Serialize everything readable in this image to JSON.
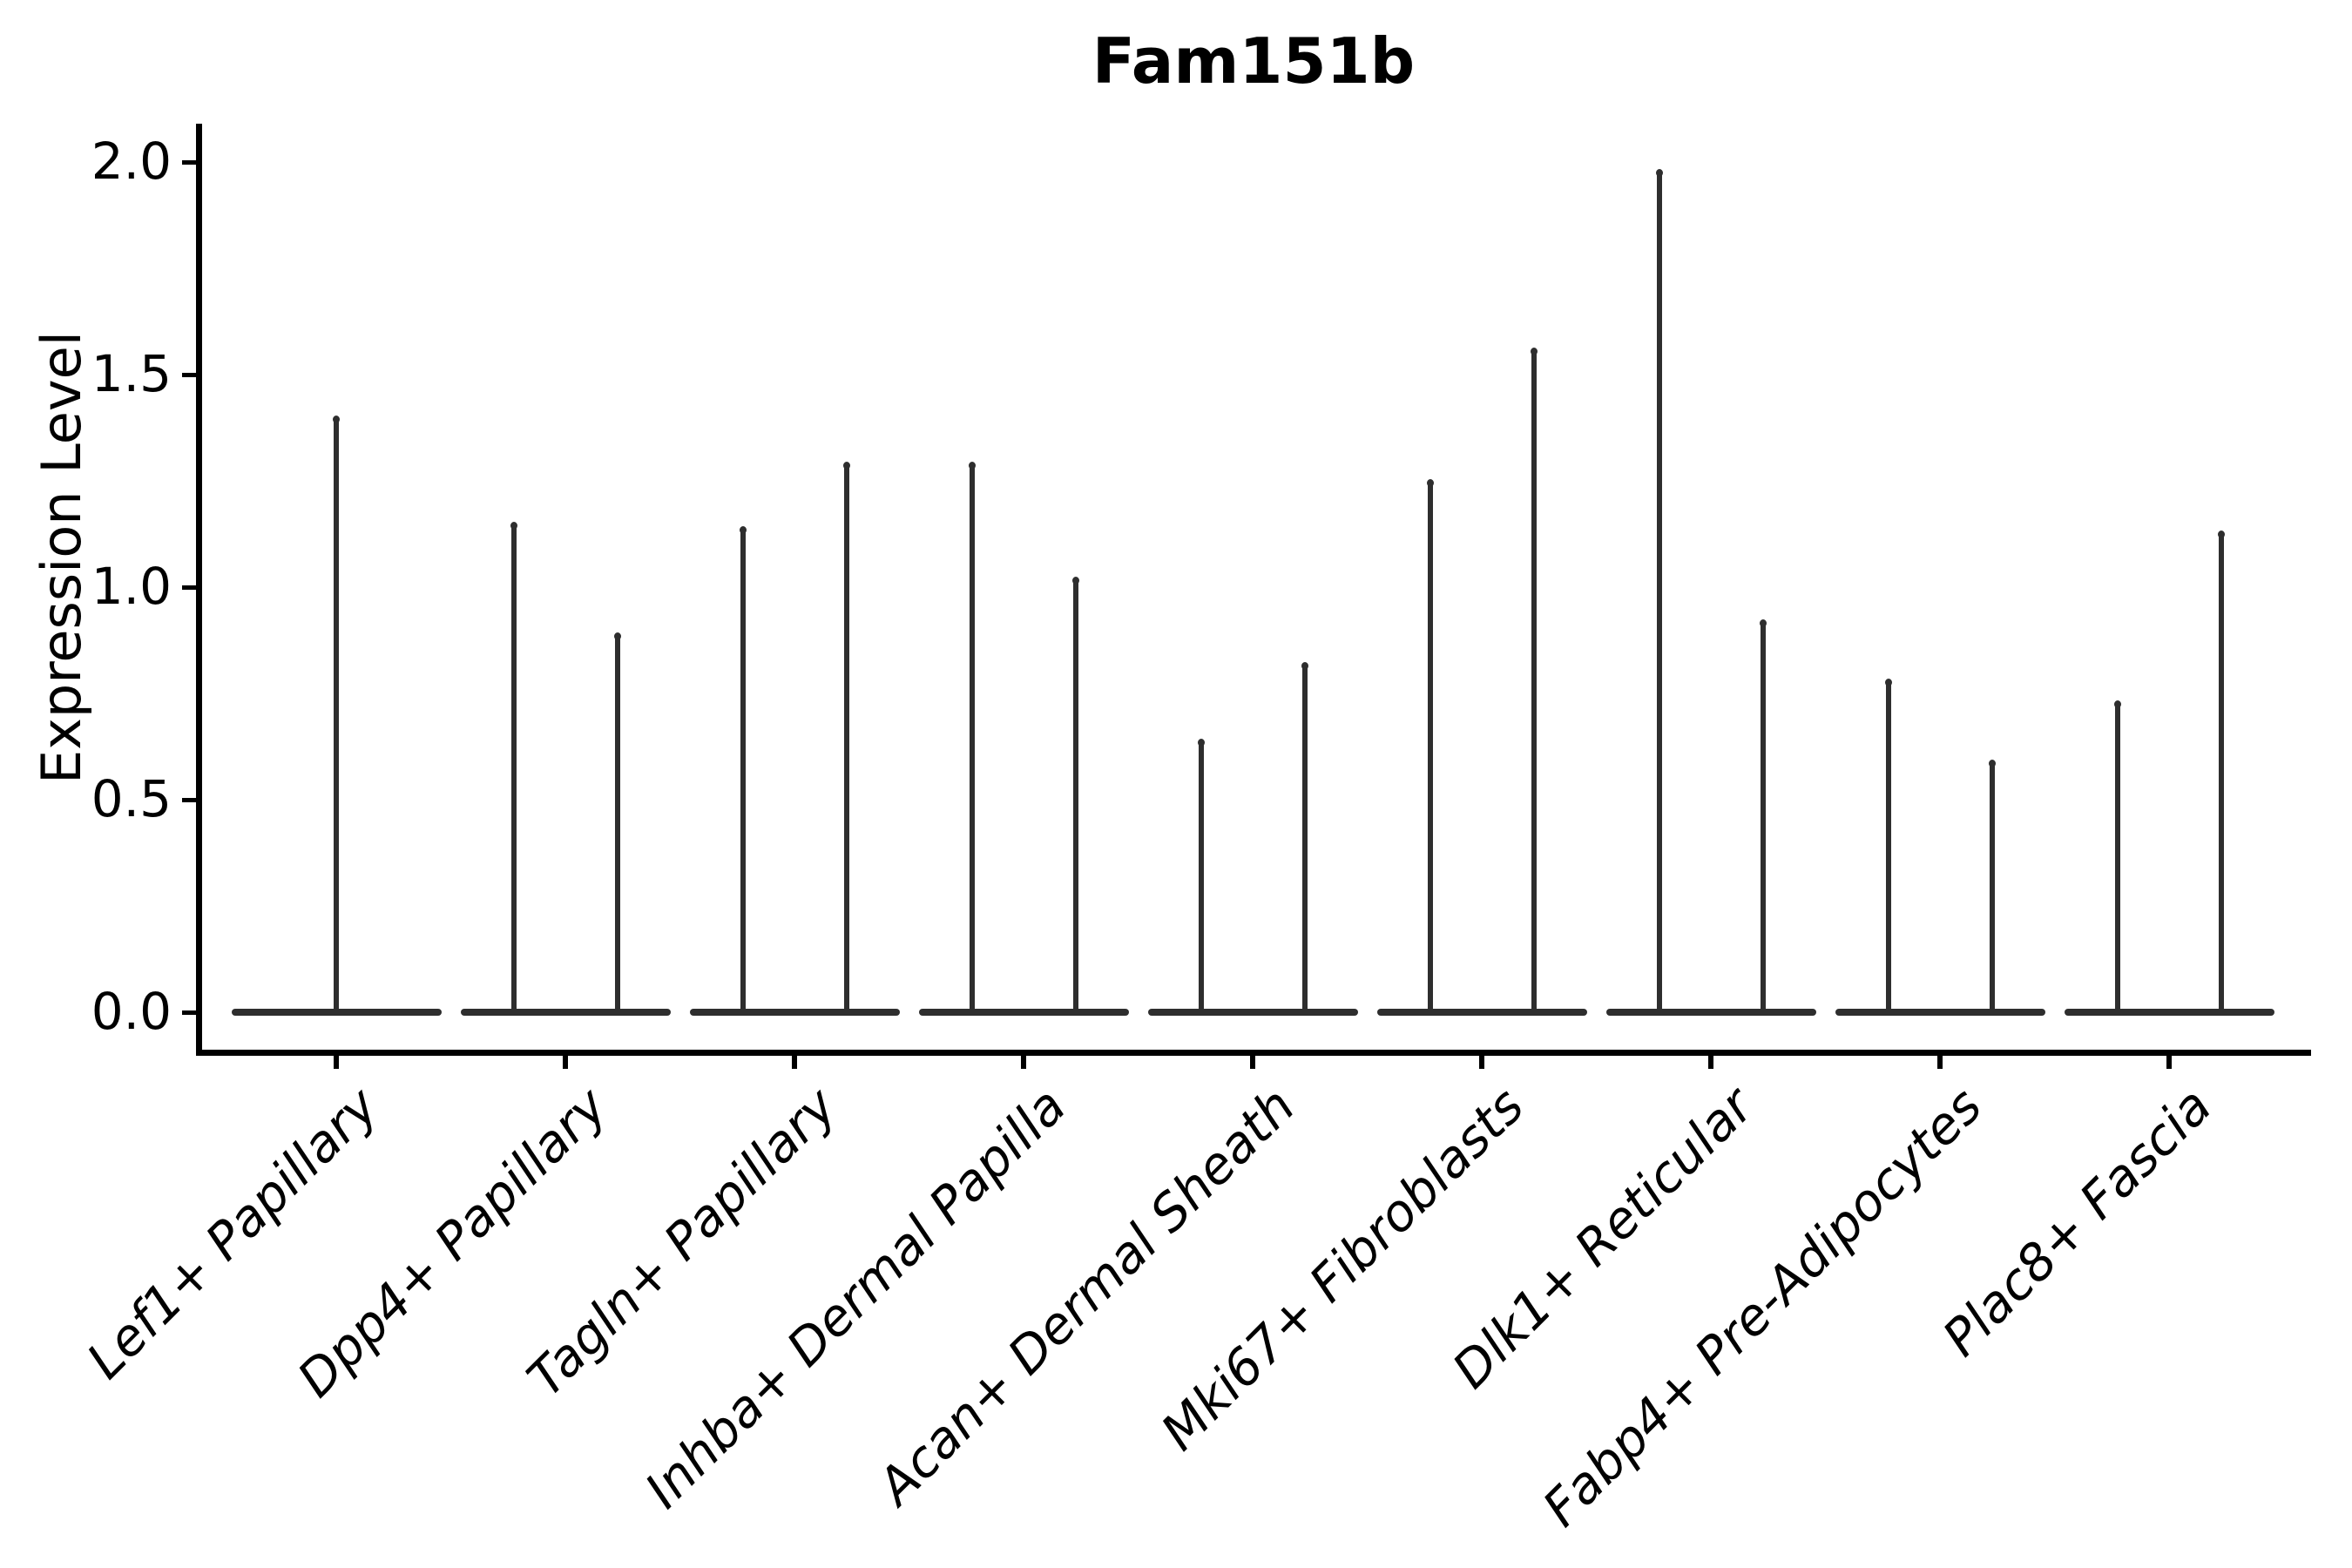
{
  "chart_data": {
    "type": "violin",
    "title": "Fam151b",
    "ylabel": "Expression Level",
    "xlabel": "",
    "yticks": [
      0.0,
      0.5,
      1.0,
      1.5,
      2.0
    ],
    "ylim": [
      -0.1,
      2.09
    ],
    "grid": false,
    "legend": "none",
    "x_label_rotation_deg": 45,
    "x_label_style": "italic",
    "categories": [
      "Lef1+ Papillary",
      "Dpp4+ Papillary",
      "Tagln+ Papillary",
      "Inhba+ Dermal Papilla",
      "Acan+ Dermal Sheath",
      "Mki67+ Fibroblasts",
      "Dlk1+ Reticular",
      "Fabp4+ Pre-Adipocytes",
      "Plac8+ Fascia"
    ],
    "series": [
      {
        "category": "Lef1+ Papillary",
        "violin_peaks": [
          1.4
        ]
      },
      {
        "category": "Dpp4+ Papillary",
        "violin_peaks": [
          1.15,
          0.89
        ]
      },
      {
        "category": "Tagln+ Papillary",
        "violin_peaks": [
          1.14,
          1.29
        ]
      },
      {
        "category": "Inhba+ Dermal Papilla",
        "violin_peaks": [
          1.29,
          1.02
        ]
      },
      {
        "category": "Acan+ Dermal Sheath",
        "violin_peaks": [
          0.64,
          0.82
        ]
      },
      {
        "category": "Mki67+ Fibroblasts",
        "violin_peaks": [
          1.25,
          1.56
        ]
      },
      {
        "category": "Dlk1+ Reticular",
        "violin_peaks": [
          1.98,
          0.92
        ]
      },
      {
        "category": "Fabp4+ Pre-Adipocytes",
        "violin_peaks": [
          0.78,
          0.59
        ]
      },
      {
        "category": "Plac8+ Fascia",
        "violin_peaks": [
          0.73,
          1.13
        ]
      }
    ],
    "colors": {
      "violin": "#2e2e2e",
      "axis": "#000000",
      "text": "#000000",
      "background": "#ffffff"
    }
  }
}
